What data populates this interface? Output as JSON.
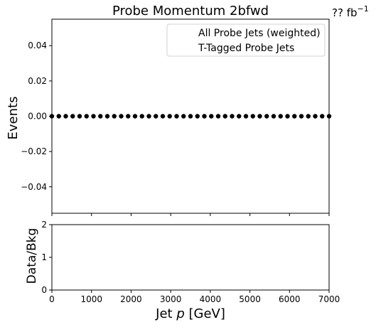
{
  "chart_data": [
    {
      "type": "scatter",
      "title": "Probe Momentum 2bfwd",
      "lumi_label": "?? fb",
      "lumi_exponent": "−1",
      "ylabel": "Events",
      "xlabel": "",
      "ylim": [
        -0.055,
        0.055
      ],
      "xlim": [
        0,
        7000
      ],
      "yticks": [
        -0.04,
        -0.02,
        0.0,
        0.02,
        0.04
      ],
      "ytick_labels": [
        "−0.04",
        "−0.02",
        "0.00",
        "0.02",
        "0.04"
      ],
      "grid": false,
      "legend_position": "top-right",
      "legend": [
        "All Probe Jets (weighted)",
        "T-Tagged Probe Jets"
      ],
      "series": [
        {
          "name": "T-Tagged Probe Jets",
          "x": [
            0,
            175,
            350,
            525,
            700,
            875,
            1050,
            1225,
            1400,
            1575,
            1750,
            1925,
            2100,
            2275,
            2450,
            2625,
            2800,
            2975,
            3150,
            3325,
            3500,
            3675,
            3850,
            4025,
            4200,
            4375,
            4550,
            4725,
            4900,
            5075,
            5250,
            5425,
            5600,
            5775,
            5950,
            6125,
            6300,
            6475,
            6650,
            6825,
            7000
          ],
          "y": [
            0,
            0,
            0,
            0,
            0,
            0,
            0,
            0,
            0,
            0,
            0,
            0,
            0,
            0,
            0,
            0,
            0,
            0,
            0,
            0,
            0,
            0,
            0,
            0,
            0,
            0,
            0,
            0,
            0,
            0,
            0,
            0,
            0,
            0,
            0,
            0,
            0,
            0,
            0,
            0,
            0
          ]
        }
      ]
    },
    {
      "type": "line",
      "title": "",
      "ylabel": "Data/Bkg",
      "xlabel_prefix": "Jet ",
      "xlabel_var": "p",
      "xlabel_suffix": " [GeV]",
      "xlim": [
        0,
        7000
      ],
      "ylim": [
        0,
        2
      ],
      "xticks": [
        0,
        1000,
        2000,
        3000,
        4000,
        5000,
        6000,
        7000
      ],
      "xtick_labels": [
        "0",
        "1000",
        "2000",
        "3000",
        "4000",
        "5000",
        "6000",
        "7000"
      ],
      "yticks": [
        0,
        1,
        2
      ],
      "ytick_labels": [
        "0",
        "1",
        "2"
      ],
      "grid": false,
      "series": []
    }
  ]
}
